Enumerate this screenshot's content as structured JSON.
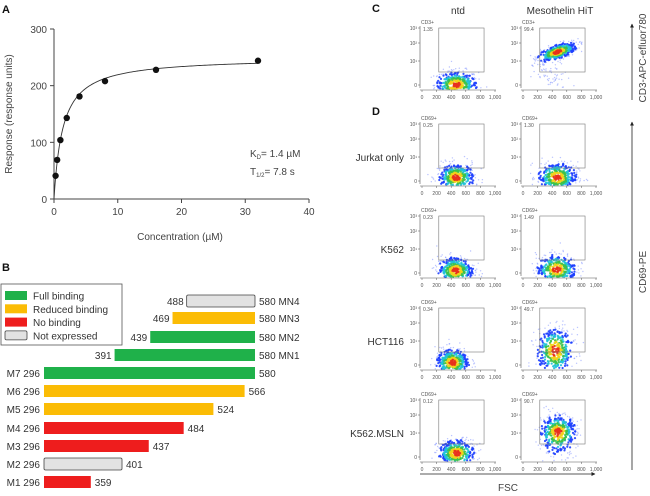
{
  "panel_labels": {
    "a": "A",
    "b": "B",
    "c": "C",
    "d": "D"
  },
  "chart_data": [
    {
      "panel": "A",
      "type": "scatter",
      "title": "",
      "xlabel": "Concentration (µM)",
      "ylabel": "Response (response units)",
      "xlim": [
        0,
        40
      ],
      "ylim": [
        0,
        300
      ],
      "xticks": [
        "0",
        "10",
        "20",
        "30",
        "40"
      ],
      "yticks": [
        "0",
        "100",
        "200",
        "300"
      ],
      "x": [
        0.25,
        0.5,
        1,
        2,
        4,
        8,
        16,
        32
      ],
      "y": [
        41,
        69,
        104,
        143,
        181,
        208,
        228,
        244
      ],
      "fit": {
        "model": "one-site binding",
        "kd": 1.4,
        "bmax": 250
      },
      "annotations": {
        "kd_symbol": "K",
        "kd_sub": "D",
        "kd_value": "= 1.4 µM",
        "t_symbol": "T",
        "t_sub": "1/2",
        "t_value": "= 7.8 s"
      },
      "grid": false
    },
    {
      "panel": "B",
      "type": "bar",
      "orientation": "horizontal",
      "xlim": [
        296,
        580
      ],
      "legend_position": "top-left",
      "legend": [
        {
          "key": "full",
          "label": "Full binding",
          "color": "#1fb14a"
        },
        {
          "key": "reduced",
          "label": "Reduced binding",
          "color": "#fbbc05"
        },
        {
          "key": "none",
          "label": "No binding",
          "color": "#ee1d1d"
        },
        {
          "key": "notexp",
          "label": "Not expressed",
          "color": "#e2e2e2"
        }
      ],
      "constructs": [
        {
          "name": "MN4",
          "start": 488,
          "end": 580,
          "category": "notexp",
          "start_label": "488",
          "end_label": "580 MN4"
        },
        {
          "name": "MN3",
          "start": 469,
          "end": 580,
          "category": "reduced",
          "start_label": "469",
          "end_label": "580 MN3"
        },
        {
          "name": "MN2",
          "start": 439,
          "end": 580,
          "category": "full",
          "start_label": "439",
          "end_label": "580 MN2"
        },
        {
          "name": "MN1",
          "start": 391,
          "end": 580,
          "category": "full",
          "start_label": "391",
          "end_label": "580 MN1"
        },
        {
          "name": "M7",
          "start": 296,
          "end": 580,
          "category": "full",
          "start_label": "M7 296",
          "end_label": "580"
        },
        {
          "name": "M6",
          "start": 296,
          "end": 566,
          "category": "reduced",
          "start_label": "M6 296",
          "end_label": "566"
        },
        {
          "name": "M5",
          "start": 296,
          "end": 524,
          "category": "reduced",
          "start_label": "M5 296",
          "end_label": "524"
        },
        {
          "name": "M4",
          "start": 296,
          "end": 484,
          "category": "none",
          "start_label": "M4 296",
          "end_label": "484"
        },
        {
          "name": "M3",
          "start": 296,
          "end": 437,
          "category": "none",
          "start_label": "M3 296",
          "end_label": "437"
        },
        {
          "name": "M2",
          "start": 296,
          "end": 401,
          "category": "notexp",
          "start_label": "M2 296",
          "end_label": "401"
        },
        {
          "name": "M1",
          "start": 296,
          "end": 359,
          "category": "none",
          "start_label": "M1 296",
          "end_label": "359"
        }
      ]
    },
    {
      "panel": "C/D",
      "type": "scatter",
      "subtype": "flow cytometry density plots",
      "columns": [
        "ntd",
        "Mesothelin HiT"
      ],
      "xlabel": "FSC",
      "ylabel_c": "CD3-APC-efluor780",
      "ylabel_d": "CD69-PE",
      "xlim": [
        0,
        1000
      ],
      "xticks": [
        "0",
        "200",
        "400",
        "600",
        "800",
        "1,000"
      ],
      "yticks": [
        "10³",
        "10²",
        "10¹",
        "0"
      ],
      "rows": [
        {
          "label": "",
          "gate": "CD3+",
          "plots": [
            {
              "pct": "1.35",
              "fsc": 470,
              "fsc_sd": 150,
              "dec": 0.0,
              "dec_sd": 0.3,
              "tilt": 0
            },
            {
              "pct": "99.4",
              "fsc": 470,
              "fsc_sd": 140,
              "dec": 1.5,
              "dec_sd": 0.22,
              "tilt": 0.0012
            }
          ]
        },
        {
          "label": "Jurkat only",
          "gate": "CD69+",
          "plots": [
            {
              "pct": "0.25",
              "fsc": 470,
              "fsc_sd": 130,
              "dec": 0.15,
              "dec_sd": 0.3,
              "tilt": 0
            },
            {
              "pct": "1.30",
              "fsc": 470,
              "fsc_sd": 140,
              "dec": 0.15,
              "dec_sd": 0.32,
              "tilt": 0
            }
          ]
        },
        {
          "label": "K562",
          "gate": "CD69+",
          "plots": [
            {
              "pct": "0.23",
              "fsc": 460,
              "fsc_sd": 130,
              "dec": 0.1,
              "dec_sd": 0.3,
              "tilt": 0
            },
            {
              "pct": "1.49",
              "fsc": 460,
              "fsc_sd": 140,
              "dec": 0.15,
              "dec_sd": 0.33,
              "tilt": 0
            }
          ]
        },
        {
          "label": "HCT116",
          "gate": "CD69+",
          "plots": [
            {
              "pct": "0.34",
              "fsc": 420,
              "fsc_sd": 120,
              "dec": 0.1,
              "dec_sd": 0.3,
              "tilt": 0
            },
            {
              "pct": "49.7",
              "fsc": 440,
              "fsc_sd": 130,
              "dec": 0.6,
              "dec_sd": 0.55,
              "tilt": 0
            }
          ]
        },
        {
          "label": "K562.MSLN",
          "gate": "CD69+",
          "plots": [
            {
              "pct": "0.12",
              "fsc": 470,
              "fsc_sd": 130,
              "dec": 0.15,
              "dec_sd": 0.3,
              "tilt": 0
            },
            {
              "pct": "90.7",
              "fsc": 480,
              "fsc_sd": 130,
              "dec": 1.05,
              "dec_sd": 0.5,
              "tilt": 0
            }
          ]
        }
      ]
    }
  ]
}
